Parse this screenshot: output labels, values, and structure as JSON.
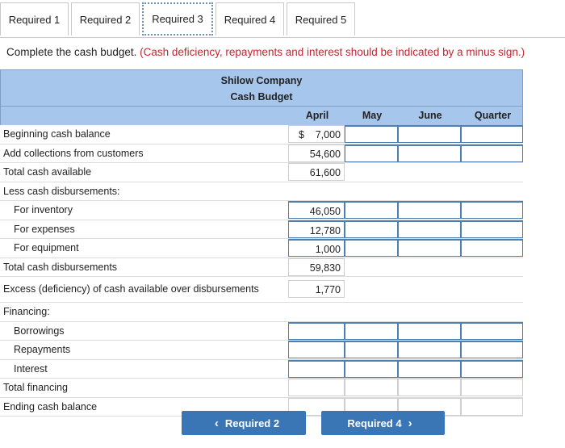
{
  "tabs": [
    "Required 1",
    "Required 2",
    "Required 3",
    "Required 4",
    "Required 5"
  ],
  "instruction": {
    "main": "Complete the cash budget.",
    "note": "(Cash deficiency, repayments and interest should be indicated by a minus sign.)"
  },
  "budget": {
    "company": "Shilow Company",
    "title": "Cash Budget",
    "columns": [
      "April",
      "May",
      "June",
      "Quarter"
    ],
    "rows": [
      {
        "label": "Beginning cash balance",
        "april": "7,000",
        "dollar": "$"
      },
      {
        "label": "Add collections from customers",
        "april": "54,600"
      },
      {
        "label": "Total cash available",
        "april": "61,600"
      },
      {
        "label": "Less cash disbursements:",
        "april": ""
      },
      {
        "label": "For inventory",
        "april": "46,050"
      },
      {
        "label": "For expenses",
        "april": "12,780"
      },
      {
        "label": "For equipment",
        "april": "1,000"
      },
      {
        "label": "Total cash disbursements",
        "april": "59,830"
      },
      {
        "label": "Excess (deficiency) of cash available over disbursements",
        "april": "1,770"
      },
      {
        "label": "Financing:",
        "april": ""
      },
      {
        "label": "Borrowings",
        "april": ""
      },
      {
        "label": "Repayments",
        "april": ""
      },
      {
        "label": "Interest",
        "april": ""
      },
      {
        "label": "Total financing",
        "april": ""
      },
      {
        "label": "Ending cash balance",
        "april": ""
      }
    ]
  },
  "nav": {
    "prev_label": "Required 2",
    "next_label": "Required 4",
    "prev_icon": "chevron-left-icon",
    "next_icon": "chevron-right-icon"
  },
  "colors": {
    "header_bg": "#a7c6ec",
    "button_bg": "#3a76b5",
    "note_red": "#c0282d"
  }
}
